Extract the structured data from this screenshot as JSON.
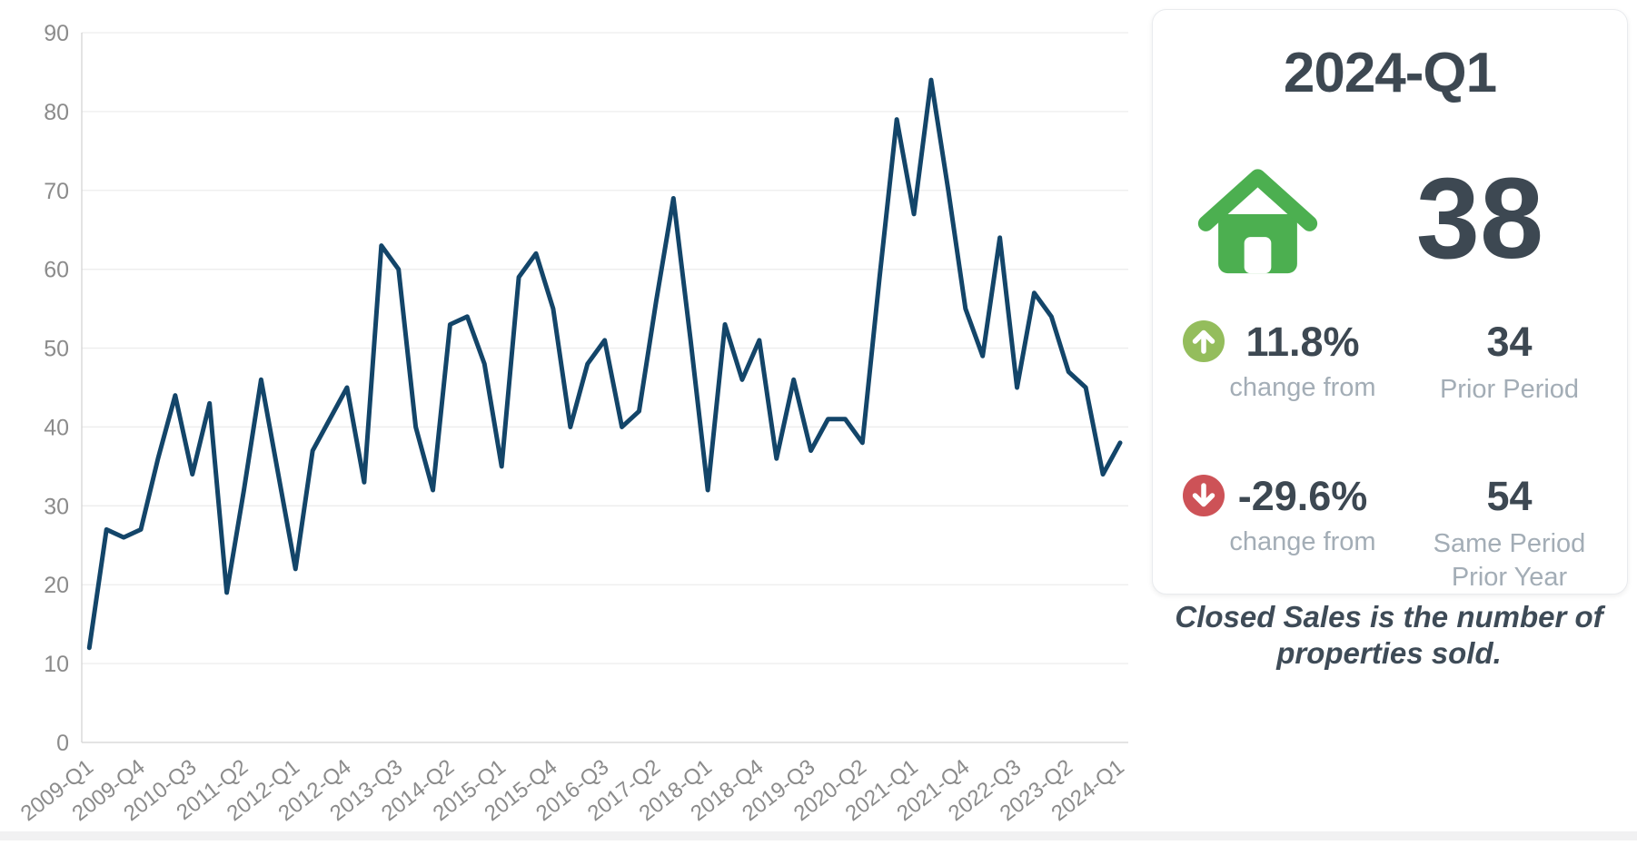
{
  "chart_data": {
    "type": "line",
    "title": "",
    "xlabel": "",
    "ylabel": "",
    "ylim": [
      0,
      90
    ],
    "ytick_step": 10,
    "grid": true,
    "legend": "none",
    "tick_every": 3,
    "x_tick_labels": [
      "2009-Q1",
      "2009-Q4",
      "2010-Q3",
      "2011-Q2",
      "2012-Q1",
      "2012-Q4",
      "2013-Q3",
      "2014-Q2",
      "2015-Q1",
      "2015-Q4",
      "2016-Q3",
      "2017-Q2",
      "2018-Q1",
      "2018-Q4",
      "2019-Q3",
      "2020-Q2",
      "2021-Q1",
      "2021-Q4",
      "2022-Q3",
      "2023-Q2",
      "2024-Q1"
    ],
    "categories": [
      "2009-Q1",
      "2009-Q2",
      "2009-Q3",
      "2009-Q4",
      "2010-Q1",
      "2010-Q2",
      "2010-Q3",
      "2010-Q4",
      "2011-Q1",
      "2011-Q2",
      "2011-Q3",
      "2011-Q4",
      "2012-Q1",
      "2012-Q2",
      "2012-Q3",
      "2012-Q4",
      "2013-Q1",
      "2013-Q2",
      "2013-Q3",
      "2013-Q4",
      "2014-Q1",
      "2014-Q2",
      "2014-Q3",
      "2014-Q4",
      "2015-Q1",
      "2015-Q2",
      "2015-Q3",
      "2015-Q4",
      "2016-Q1",
      "2016-Q2",
      "2016-Q3",
      "2016-Q4",
      "2017-Q1",
      "2017-Q2",
      "2017-Q3",
      "2017-Q4",
      "2018-Q1",
      "2018-Q2",
      "2018-Q3",
      "2018-Q4",
      "2019-Q1",
      "2019-Q2",
      "2019-Q3",
      "2019-Q4",
      "2020-Q1",
      "2020-Q2",
      "2020-Q3",
      "2020-Q4",
      "2021-Q1",
      "2021-Q2",
      "2021-Q3",
      "2021-Q4",
      "2022-Q1",
      "2022-Q2",
      "2022-Q3",
      "2022-Q4",
      "2023-Q1",
      "2023-Q2",
      "2023-Q3",
      "2023-Q4",
      "2024-Q1"
    ],
    "series": [
      {
        "name": "Closed Sales",
        "values": [
          12,
          27,
          26,
          27,
          36,
          44,
          34,
          43,
          19,
          32,
          46,
          34,
          22,
          37,
          41,
          45,
          33,
          63,
          60,
          40,
          32,
          53,
          54,
          48,
          35,
          59,
          62,
          55,
          40,
          48,
          51,
          40,
          42,
          56,
          69,
          51,
          32,
          53,
          46,
          51,
          36,
          46,
          37,
          41,
          41,
          38,
          59,
          79,
          67,
          84,
          70,
          55,
          49,
          64,
          45,
          57,
          54,
          47,
          45,
          34,
          38
        ]
      }
    ],
    "line_color": "#134569",
    "grid_color": "#ededed",
    "axis_color": "#d4d4d4",
    "tick_color": "#8b8b8b"
  },
  "panel": {
    "title": "2024-Q1",
    "current_value": "38",
    "house_icon_color": "#4caf50",
    "rows": [
      {
        "direction": "up",
        "circle_color": "#94bd5c",
        "pct": "11.8%",
        "pct_label": "change from",
        "value": "34",
        "value_label": "Prior Period"
      },
      {
        "direction": "down",
        "circle_color": "#cd5257",
        "pct": "-29.6%",
        "pct_label": "change from",
        "value": "54",
        "value_label": "Same Period Prior Year"
      }
    ],
    "footnote": "Closed Sales is the number of properties sold."
  },
  "colors": {
    "value_text": "#3d4852",
    "muted_label": "#a3adb6",
    "footnote_text": "#3e4b57"
  }
}
